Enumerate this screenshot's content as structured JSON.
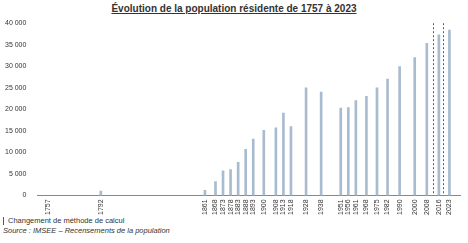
{
  "chart_data": {
    "type": "bar",
    "title": "Évolution de la population résidente de 1757 à 2023",
    "x": [
      1792,
      1861,
      1868,
      1873,
      1878,
      1883,
      1888,
      1893,
      1900,
      1908,
      1913,
      1918,
      1928,
      1938,
      1951,
      1956,
      1961,
      1968,
      1975,
      1982,
      1990,
      2000,
      2008,
      2016,
      2023
    ],
    "values": [
      1000,
      1200,
      3200,
      5700,
      6000,
      7700,
      10700,
      13100,
      15100,
      15700,
      19100,
      16000,
      25000,
      24000,
      20300,
      20400,
      22000,
      23000,
      25000,
      27000,
      29900,
      32000,
      35300,
      37300,
      38400
    ],
    "color": "#a9bccf",
    "xlim": [
      1750,
      2030
    ],
    "xticks": [
      1757,
      1792,
      1861,
      1868,
      1873,
      1878,
      1883,
      1888,
      1893,
      1900,
      1908,
      1913,
      1918,
      1928,
      1938,
      1951,
      1956,
      1961,
      1968,
      1975,
      1982,
      1990,
      2000,
      2008,
      2016,
      2023
    ],
    "ylim": [
      0,
      40000
    ],
    "yticks": [
      0,
      {
        "value": 5000,
        "label": "5 000"
      },
      {
        "value": 10000,
        "label": "10 000"
      },
      {
        "value": 15000,
        "label": "15 000"
      },
      {
        "value": 20000,
        "label": "20 000"
      },
      {
        "value": 25000,
        "label": "25 000"
      },
      {
        "value": 30000,
        "label": "30 000"
      },
      {
        "value": 35000,
        "label": "35 000"
      },
      {
        "value": 40000,
        "label": "40 000"
      }
    ],
    "grid": false,
    "legend": false,
    "annotations": {
      "method_change_years": [
        2012,
        2019
      ],
      "method_change_color": "#e02020",
      "method_change_label": "Changement de méthode de calcul",
      "source": "Source : IMSEE – Recensements de la population"
    }
  }
}
